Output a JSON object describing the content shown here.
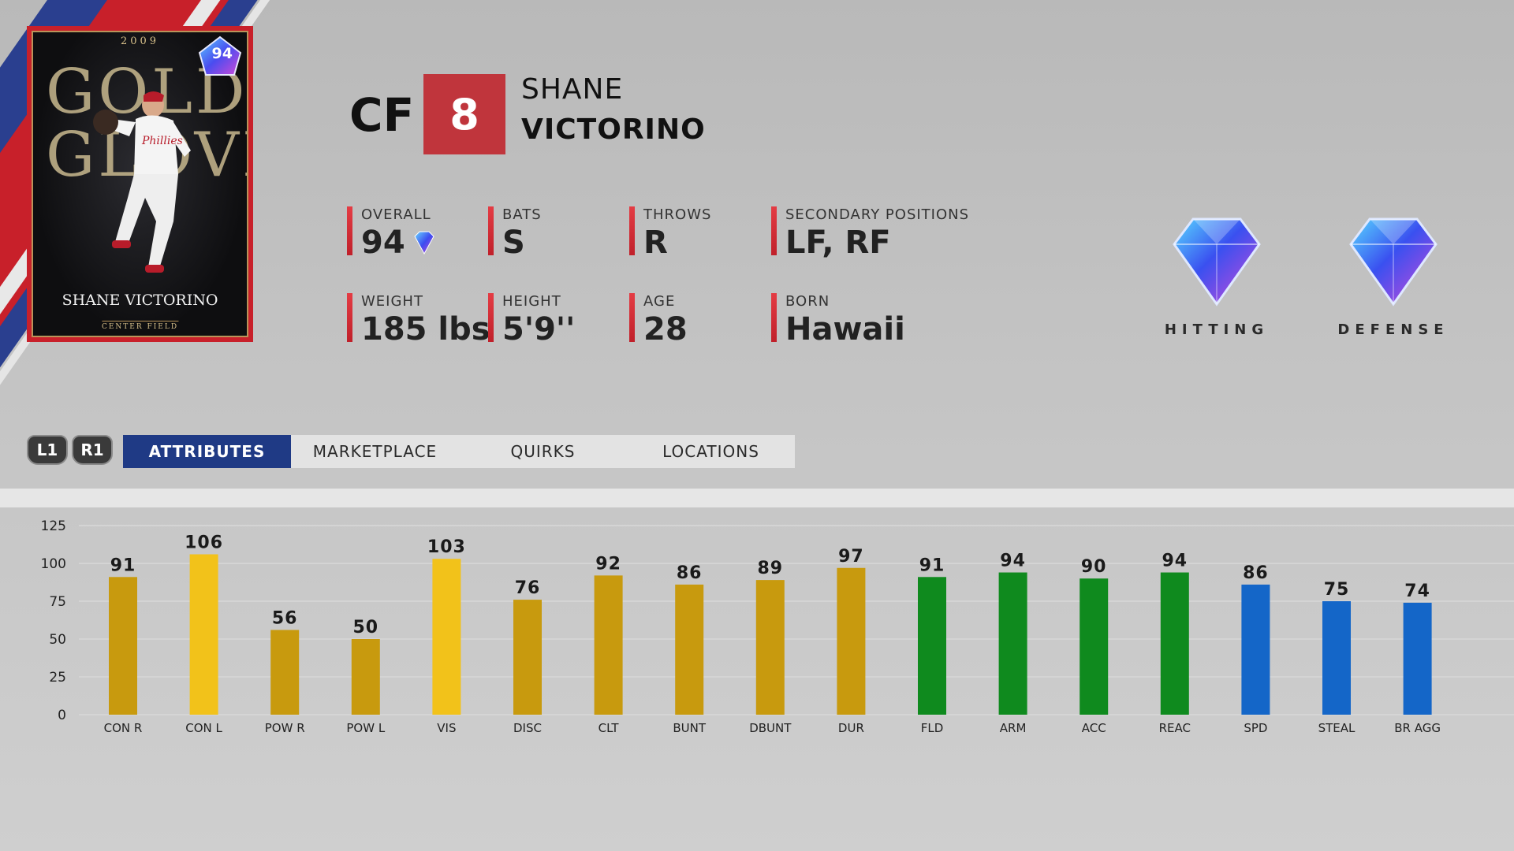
{
  "card": {
    "year": "2009",
    "set_art": "GOLD GLOVE",
    "name": "SHANE VICTORINO",
    "position_line": "CENTER FIELD",
    "overall": "94"
  },
  "header": {
    "position": "CF",
    "number": "8",
    "first_name": "SHANE",
    "last_name": "VICTORINO"
  },
  "info": {
    "overall": {
      "label": "OVERALL",
      "value": "94"
    },
    "bats": {
      "label": "BATS",
      "value": "S"
    },
    "throws": {
      "label": "THROWS",
      "value": "R"
    },
    "secondary": {
      "label": "SECONDARY POSITIONS",
      "value": "LF, RF"
    },
    "weight": {
      "label": "WEIGHT",
      "value": "185 lbs"
    },
    "height": {
      "label": "HEIGHT",
      "value": "5'9''"
    },
    "age": {
      "label": "AGE",
      "value": "28"
    },
    "born": {
      "label": "BORN",
      "value": "Hawaii"
    }
  },
  "ratings": {
    "hitting": "HITTING",
    "defense": "DEFENSE"
  },
  "buttons": {
    "l1": "L1",
    "r1": "R1"
  },
  "tabs": [
    {
      "label": "ATTRIBUTES",
      "active": true
    },
    {
      "label": "MARKETPLACE",
      "active": false
    },
    {
      "label": "QUIRKS",
      "active": false
    },
    {
      "label": "LOCATIONS",
      "active": false
    }
  ],
  "colors": {
    "hitting": "#c89a0e",
    "hitting_elite": "#f2c21a",
    "fielding": "#0f8a1e",
    "running": "#1466c8",
    "accent_red": "#c0353c",
    "tab_active": "#1f3a85"
  },
  "chart_data": {
    "type": "bar",
    "ylim": [
      0,
      125
    ],
    "yticks": [
      0,
      25,
      50,
      75,
      100,
      125
    ],
    "grid": true,
    "categories": [
      "CON R",
      "CON L",
      "POW R",
      "POW L",
      "VIS",
      "DISC",
      "CLT",
      "BUNT",
      "DBUNT",
      "DUR",
      "FLD",
      "ARM",
      "ACC",
      "REAC",
      "SPD",
      "STEAL",
      "BR AGG"
    ],
    "values": [
      91,
      106,
      56,
      50,
      103,
      76,
      92,
      86,
      89,
      97,
      91,
      94,
      90,
      94,
      86,
      75,
      74
    ],
    "groups": [
      "hitting",
      "hitting",
      "hitting",
      "hitting",
      "hitting",
      "hitting",
      "hitting",
      "hitting",
      "hitting",
      "hitting",
      "fielding",
      "fielding",
      "fielding",
      "fielding",
      "running",
      "running",
      "running"
    ]
  }
}
